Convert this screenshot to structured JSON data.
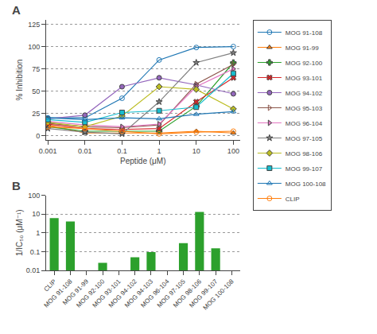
{
  "chart_data": [
    {
      "type": "line",
      "annotations": [
        "A"
      ],
      "x": [
        0.001,
        0.01,
        0.1,
        1,
        10,
        100
      ],
      "series": [
        {
          "name": "MOG 91-108",
          "marker": "circle-open",
          "values": [
            20,
            20,
            42,
            85,
            99,
            100
          ]
        },
        {
          "name": "MOG 91-99",
          "marker": "triangle-up",
          "values": [
            12,
            3,
            3,
            3,
            5,
            3
          ]
        },
        {
          "name": "MOG 92-100",
          "marker": "cross",
          "values": [
            10,
            5,
            5,
            5,
            33,
            82
          ]
        },
        {
          "name": "MOG 93-101",
          "marker": "x",
          "values": [
            13,
            8,
            7,
            8,
            38,
            65
          ]
        },
        {
          "name": "MOG 94-102",
          "marker": "circle",
          "values": [
            19,
            23,
            55,
            65,
            57,
            47
          ]
        },
        {
          "name": "MOG 95-103",
          "marker": "triangle-right-open",
          "values": [
            14,
            10,
            9,
            12,
            58,
            80
          ]
        },
        {
          "name": "MOG 96-104",
          "marker": "triangle-right",
          "values": [
            16,
            12,
            10,
            13,
            55,
            75
          ]
        },
        {
          "name": "MOG 97-105",
          "marker": "star",
          "values": [
            8,
            4,
            2,
            38,
            82,
            93
          ]
        },
        {
          "name": "MOG 98-106",
          "marker": "diamond",
          "values": [
            15,
            10,
            22,
            55,
            52,
            30
          ]
        },
        {
          "name": "MOG 99-107",
          "marker": "square",
          "values": [
            18,
            15,
            26,
            28,
            32,
            70
          ]
        },
        {
          "name": "MOG 100-108",
          "marker": "triangle-up-open",
          "values": [
            20,
            18,
            20,
            19,
            24,
            27
          ]
        },
        {
          "name": "CLIP",
          "marker": "circle-open",
          "values": [
            10,
            8,
            5,
            2,
            4,
            5
          ]
        }
      ],
      "xlabel": "Peptide (μM)",
      "ylabel": "% Inhibition",
      "log": "x",
      "xlim": [
        0.0009,
        150
      ],
      "xticks": [
        0.001,
        0.01,
        0.1,
        1,
        10,
        100
      ],
      "ylim": [
        -5,
        130
      ],
      "yticks": [
        0,
        25,
        50,
        75,
        100,
        125
      ],
      "grid": true,
      "legend": "right"
    },
    {
      "type": "bar",
      "annotations": [
        "B"
      ],
      "categories": [
        "CLIP",
        "MOG 91-108",
        "MOG 91-99",
        "MOG 92-100",
        "MOG 93-101",
        "MOG 94-102",
        "MOG 94-103",
        "MOG 96-104",
        "MOG 97-105",
        "MOG 98-106",
        "MOG 99-107",
        "MOG 100-108"
      ],
      "values": [
        6.0,
        4.0,
        null,
        0.025,
        null,
        0.05,
        0.095,
        null,
        0.28,
        13.0,
        0.15,
        null
      ],
      "ylabel": "1/IC₅₀ (μM⁻¹)",
      "log": "y",
      "ylim": [
        0.01,
        100
      ],
      "yticks": [
        0.01,
        0.1,
        1,
        10,
        100
      ],
      "grid": true
    }
  ]
}
